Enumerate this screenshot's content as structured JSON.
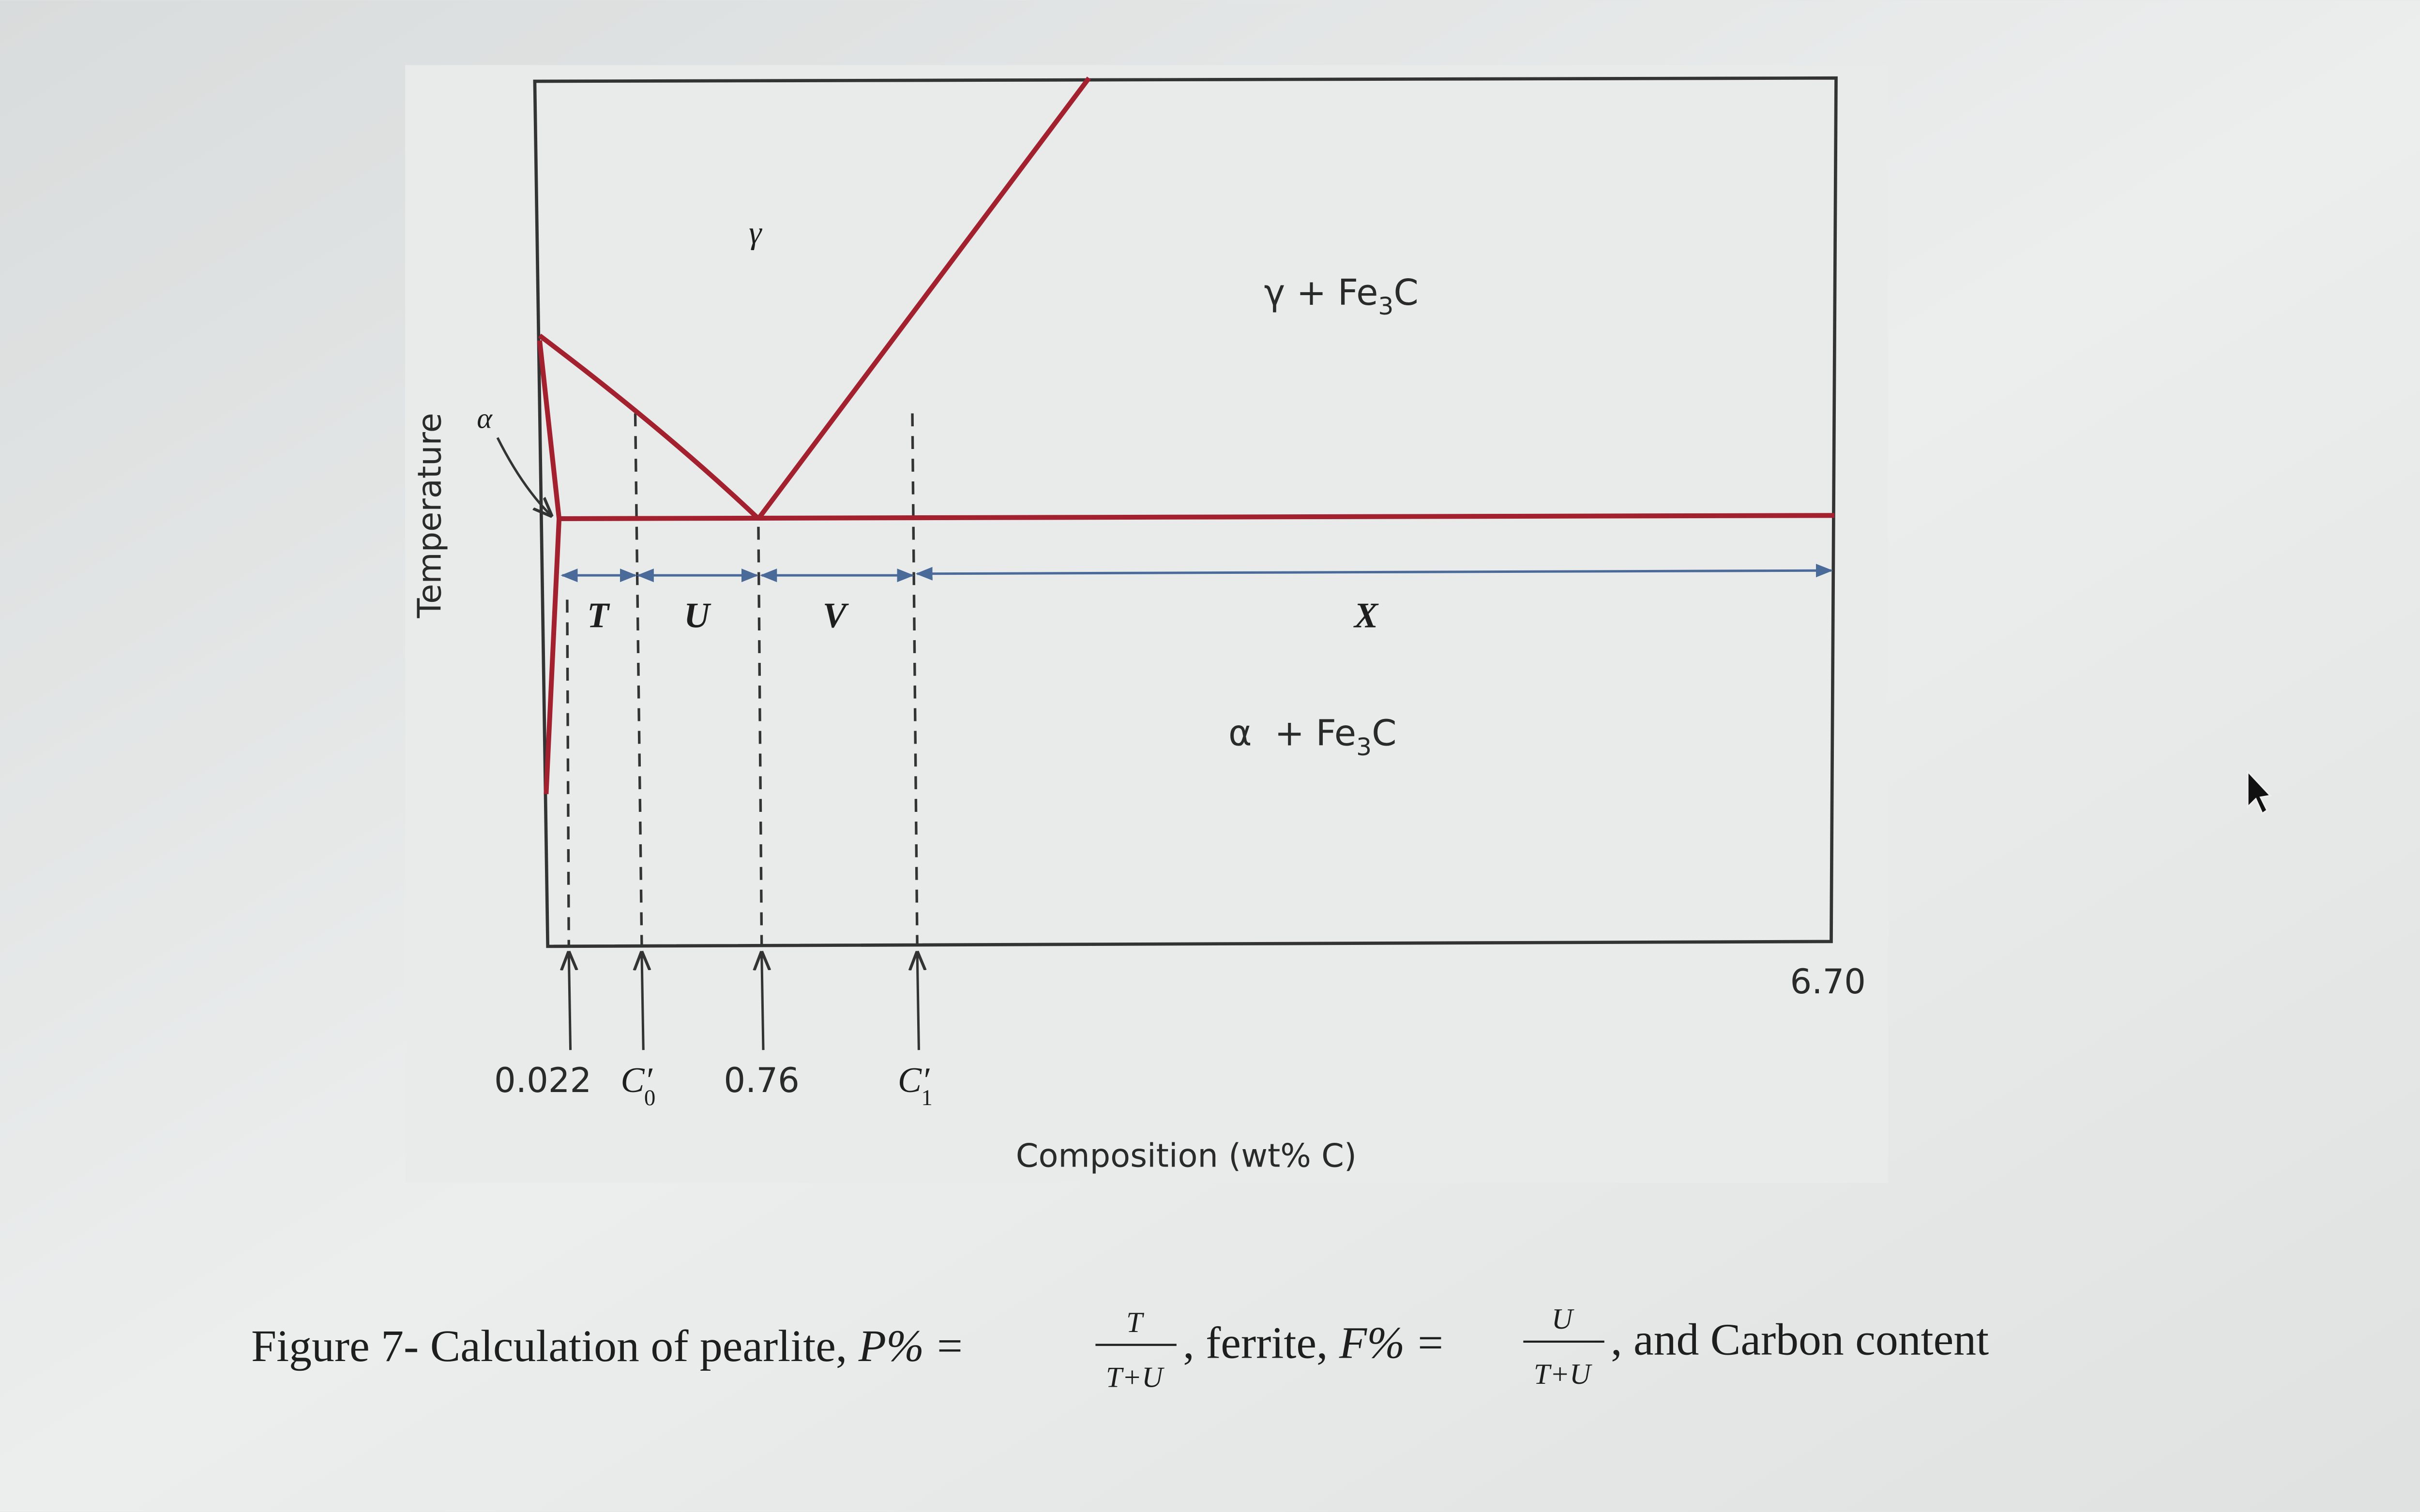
{
  "diagram": {
    "y_axis_label": "Temperature",
    "x_axis_label": "Composition (wt% C)",
    "regions": {
      "gamma": "γ",
      "alpha": "α",
      "gamma_fe3c": [
        "γ + Fe",
        "3",
        "C"
      ],
      "alpha_fe3c": [
        "α  + Fe",
        "3",
        "C"
      ]
    },
    "segments": [
      "T",
      "U",
      "V",
      "X"
    ],
    "compositions": {
      "c_alpha": "0.022",
      "c0": [
        "C",
        "′",
        "0"
      ],
      "eutectoid": "0.76",
      "c1": [
        "C",
        "′",
        "1"
      ],
      "cementite": "6.70"
    }
  },
  "caption": {
    "text_1": "Figure 7- Calculation of pearlite, ",
    "pearlite": "P%",
    "equals_1": "=",
    "pearlite_fraction": {
      "numerator": "T",
      "denominator": "T+U"
    },
    "text_2": ", ferrite, ",
    "ferrite": "F%",
    "equals_2": "=",
    "ferrite_fraction": {
      "numerator": "U",
      "denominator": "T+U"
    },
    "text_3": ", and Carbon content"
  }
}
